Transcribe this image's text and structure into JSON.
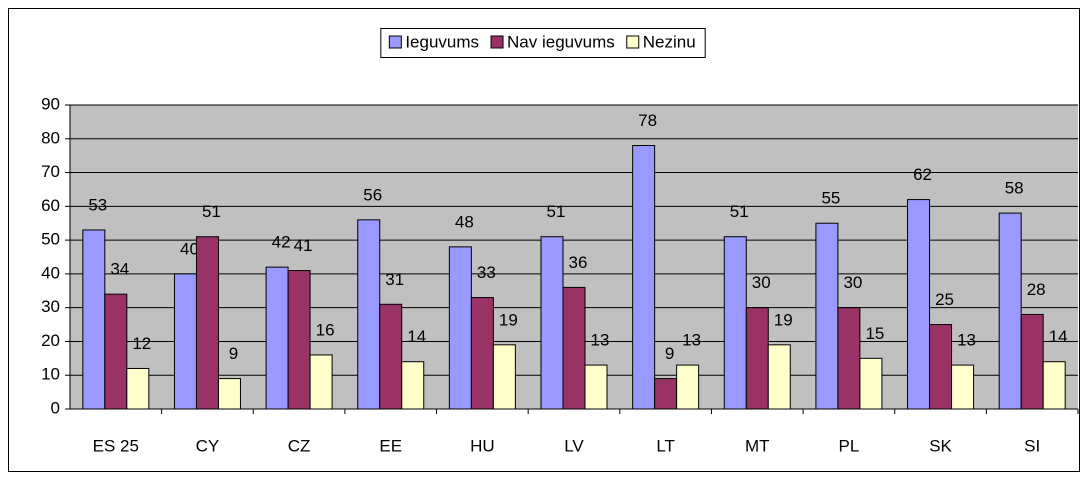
{
  "chart_data": {
    "type": "bar",
    "categories": [
      "ES 25",
      "CY",
      "CZ",
      "EE",
      "HU",
      "LV",
      "LT",
      "MT",
      "PL",
      "SK",
      "SI"
    ],
    "series": [
      {
        "name": "Ieguvums",
        "color": "#9999ff",
        "values": [
          53,
          40,
          42,
          56,
          48,
          51,
          78,
          51,
          55,
          62,
          58
        ]
      },
      {
        "name": "Nav ieguvums",
        "color": "#993366",
        "values": [
          34,
          51,
          41,
          31,
          33,
          36,
          9,
          30,
          30,
          25,
          28
        ]
      },
      {
        "name": "Nezinu",
        "color": "#ffffcc",
        "values": [
          12,
          9,
          16,
          14,
          19,
          13,
          13,
          19,
          15,
          13,
          14
        ]
      }
    ],
    "ylim": [
      0,
      90
    ],
    "yticks": [
      0,
      10,
      20,
      30,
      40,
      50,
      60,
      70,
      80,
      90
    ],
    "grid": true,
    "legend": "top"
  }
}
